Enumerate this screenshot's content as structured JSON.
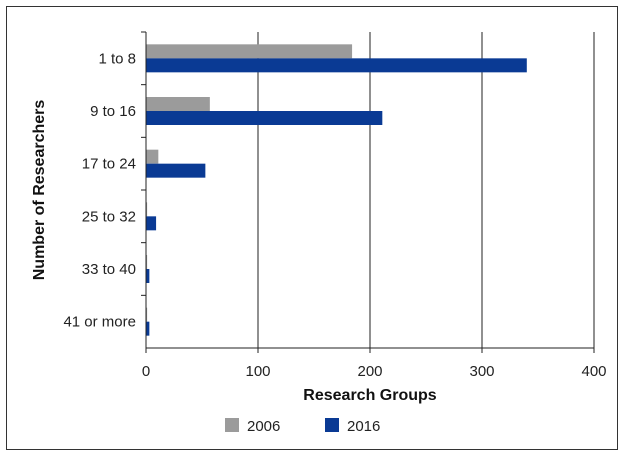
{
  "chart_data": {
    "type": "bar",
    "orientation": "horizontal",
    "categories": [
      "1 to 8",
      "9 to 16",
      "17 to 24",
      "25 to 32",
      "33 to 40",
      "41 or more"
    ],
    "series": [
      {
        "name": "2006",
        "values": [
          184,
          57,
          11,
          1,
          1,
          1
        ],
        "color": "#9b9b9b"
      },
      {
        "name": "2016",
        "values": [
          340,
          211,
          53,
          9,
          3,
          3
        ],
        "color": "#0a3a94"
      }
    ],
    "xlabel": "Research Groups",
    "ylabel": "Number of Researchers",
    "xlim": [
      0,
      400
    ],
    "xticks": [
      "0",
      "100",
      "200",
      "300",
      "400"
    ],
    "grid": "vertical",
    "legend_position": "bottom"
  }
}
